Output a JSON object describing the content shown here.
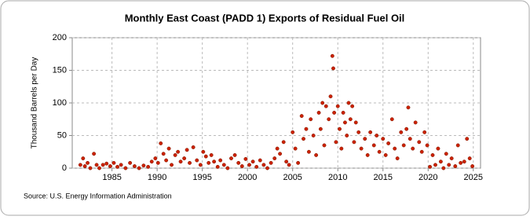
{
  "chart_data": {
    "type": "scatter",
    "title": "Monthly East Coast (PADD 1) Exports of Residual Fuel Oil",
    "y_label": "Thousand Barrels per Day",
    "source": "Source: U.S. Energy Information Administration",
    "color": "#cc2200",
    "grid": true,
    "xlim": [
      1980.6,
      2025.8
    ],
    "xticks": [
      1985,
      1990,
      1995,
      2000,
      2005,
      2010,
      2015,
      2020,
      2025
    ],
    "ylim": [
      0,
      200
    ],
    "yticks": [
      0,
      50,
      100,
      150,
      200
    ],
    "x": [
      1981.5,
      1981.8,
      1982.0,
      1982.3,
      1982.6,
      1983.0,
      1983.3,
      1983.6,
      1984.0,
      1984.4,
      1984.8,
      1985.2,
      1985.6,
      1986.0,
      1986.5,
      1987.0,
      1987.5,
      1988.0,
      1988.5,
      1989.0,
      1989.4,
      1989.8,
      1990.1,
      1990.4,
      1990.7,
      1991.0,
      1991.3,
      1991.6,
      1992.0,
      1992.3,
      1992.6,
      1993.0,
      1993.3,
      1993.6,
      1994.0,
      1994.4,
      1994.8,
      1995.1,
      1995.4,
      1995.7,
      1996.0,
      1996.3,
      1996.7,
      1997.0,
      1997.4,
      1997.8,
      1998.2,
      1998.6,
      1999.0,
      1999.4,
      1999.8,
      2000.2,
      2000.6,
      2001.0,
      2001.4,
      2001.8,
      2002.2,
      2002.6,
      2003.0,
      2003.3,
      2003.6,
      2004.0,
      2004.3,
      2004.6,
      2005.0,
      2005.3,
      2005.6,
      2006.0,
      2006.2,
      2006.5,
      2006.8,
      2007.0,
      2007.3,
      2007.6,
      2007.9,
      2008.1,
      2008.3,
      2008.5,
      2008.7,
      2009.0,
      2009.2,
      2009.4,
      2009.5,
      2009.6,
      2009.8,
      2010.0,
      2010.2,
      2010.4,
      2010.6,
      2010.8,
      2011.0,
      2011.2,
      2011.4,
      2011.6,
      2011.8,
      2012.0,
      2012.3,
      2012.6,
      2013.0,
      2013.3,
      2013.6,
      2014.0,
      2014.3,
      2014.6,
      2015.0,
      2015.3,
      2015.6,
      2016.0,
      2016.3,
      2016.6,
      2017.0,
      2017.3,
      2017.6,
      2017.8,
      2018.0,
      2018.3,
      2018.6,
      2019.0,
      2019.3,
      2019.6,
      2019.9,
      2020.2,
      2020.5,
      2020.8,
      2021.1,
      2021.4,
      2021.7,
      2022.0,
      2022.3,
      2022.6,
      2023.0,
      2023.3,
      2023.6,
      2024.0,
      2024.3,
      2024.6,
      2024.9
    ],
    "values": [
      5,
      15,
      3,
      8,
      0,
      22,
      5,
      0,
      5,
      7,
      3,
      8,
      2,
      5,
      0,
      8,
      3,
      0,
      4,
      2,
      10,
      15,
      8,
      38,
      22,
      12,
      30,
      5,
      20,
      25,
      10,
      15,
      28,
      8,
      32,
      12,
      5,
      25,
      18,
      8,
      20,
      10,
      2,
      12,
      5,
      0,
      15,
      20,
      8,
      3,
      14,
      5,
      10,
      2,
      12,
      5,
      0,
      8,
      15,
      30,
      22,
      40,
      10,
      5,
      55,
      30,
      8,
      80,
      45,
      60,
      25,
      75,
      50,
      20,
      85,
      60,
      100,
      35,
      95,
      75,
      110,
      172,
      153,
      85,
      40,
      95,
      60,
      30,
      85,
      70,
      50,
      100,
      75,
      95,
      40,
      70,
      55,
      30,
      45,
      20,
      55,
      35,
      50,
      25,
      45,
      20,
      38,
      75,
      30,
      15,
      55,
      35,
      60,
      93,
      45,
      30,
      70,
      40,
      25,
      55,
      35,
      2,
      20,
      5,
      30,
      10,
      0,
      22,
      5,
      15,
      3,
      35,
      8,
      10,
      45,
      15,
      3
    ]
  }
}
